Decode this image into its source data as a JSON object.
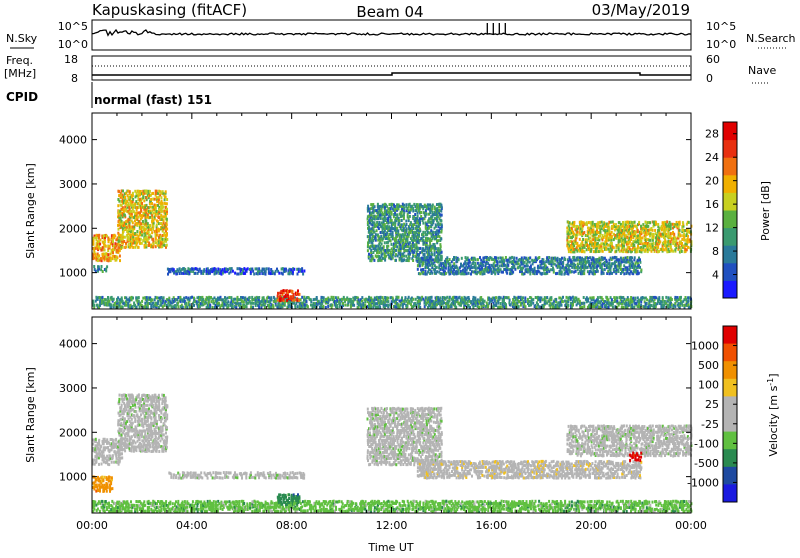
{
  "header": {
    "station": "Kapuskasing (fitACF)",
    "beam": "Beam 04",
    "date": "03/May/2019"
  },
  "panels": {
    "nsky": {
      "label": "N.Sky",
      "left_ticks": [
        "10^5",
        "10^0"
      ],
      "right_ticks": [
        "10^5",
        "10^0"
      ],
      "right_label": "N.Search"
    },
    "freq": {
      "label_line1": "Freq.",
      "label_line2": "[MHz]",
      "left_ticks": [
        "18",
        "8"
      ],
      "right_ticks": [
        "60",
        "0"
      ],
      "right_label": "Nave"
    },
    "cpid": {
      "label": "CPID",
      "value": "normal (fast) 151"
    }
  },
  "colors": {
    "power_scale": [
      "#1a1aff",
      "#2050c0",
      "#2a7a9a",
      "#3a9a70",
      "#5ab040",
      "#c8d020",
      "#f0b000",
      "#f07010",
      "#e83010",
      "#e00000"
    ],
    "velocity_scale": [
      "#1a1ae0",
      "#1e4aa0",
      "#2a8a50",
      "#60c040",
      "#b4b4b4",
      "#b4b4b4",
      "#f0c020",
      "#f09000",
      "#f05000",
      "#e00000"
    ]
  },
  "chart_data": [
    {
      "type": "heatmap",
      "name": "power",
      "ylabel": "Slant Range [km]",
      "yticks": [
        1000,
        2000,
        3000,
        4000
      ],
      "ylim": [
        180,
        4600
      ],
      "xlim": [
        0,
        24
      ],
      "colorbar": {
        "label": "Power [dB]",
        "ticks": [
          "4",
          "8",
          "12",
          "16",
          "20",
          "24",
          "28"
        ],
        "range": [
          0,
          30
        ]
      },
      "echo_bands": [
        {
          "t0": 0.0,
          "t1": 1.2,
          "r0": 1300,
          "r1": 1900,
          "level": 20
        },
        {
          "t0": 0.0,
          "t1": 0.6,
          "r0": 1050,
          "r1": 1200,
          "level": 8
        },
        {
          "t0": 1.0,
          "t1": 3.0,
          "r0": 1600,
          "r1": 2900,
          "level": 18
        },
        {
          "t0": 3.0,
          "t1": 8.5,
          "r0": 1000,
          "r1": 1150,
          "level": 6
        },
        {
          "t0": 0.0,
          "t1": 24.0,
          "r0": 250,
          "r1": 500,
          "level": 10
        },
        {
          "t0": 7.4,
          "t1": 8.3,
          "r0": 400,
          "r1": 650,
          "level": 26
        },
        {
          "t0": 11.0,
          "t1": 14.0,
          "r0": 1300,
          "r1": 2600,
          "level": 10
        },
        {
          "t0": 13.0,
          "t1": 22.0,
          "r0": 1000,
          "r1": 1400,
          "level": 8
        },
        {
          "t0": 19.0,
          "t1": 24.0,
          "r0": 1500,
          "r1": 2200,
          "level": 17
        }
      ]
    },
    {
      "type": "heatmap",
      "name": "velocity",
      "ylabel": "Slant Range [km]",
      "xlabel": "Time UT",
      "yticks": [
        1000,
        2000,
        3000,
        4000
      ],
      "ylim": [
        180,
        4600
      ],
      "xlim": [
        0,
        24
      ],
      "xticks": [
        "00:00",
        "04:00",
        "08:00",
        "12:00",
        "16:00",
        "20:00",
        "00:00"
      ],
      "colorbar": {
        "label": "Velocity [m s^-1]",
        "ticks": [
          "1000",
          "500",
          "100",
          "25",
          "-25",
          "-100",
          "-500",
          "-1000"
        ]
      },
      "echo_bands": [
        {
          "t0": 0.0,
          "t1": 1.2,
          "r0": 1300,
          "r1": 1900,
          "level": 4
        },
        {
          "t0": 0.0,
          "t1": 0.8,
          "r0": 700,
          "r1": 1050,
          "level": 7
        },
        {
          "t0": 1.0,
          "t1": 3.0,
          "r0": 1600,
          "r1": 2900,
          "level": 4
        },
        {
          "t0": 3.0,
          "t1": 8.5,
          "r0": 1000,
          "r1": 1150,
          "level": 4
        },
        {
          "t0": 0.0,
          "t1": 24.0,
          "r0": 250,
          "r1": 500,
          "level": 3
        },
        {
          "t0": 7.4,
          "t1": 8.3,
          "r0": 400,
          "r1": 650,
          "level": 2
        },
        {
          "t0": 11.0,
          "t1": 14.0,
          "r0": 1300,
          "r1": 2600,
          "level": 4
        },
        {
          "t0": 13.0,
          "t1": 22.0,
          "r0": 1000,
          "r1": 1400,
          "level": 5
        },
        {
          "t0": 19.0,
          "t1": 24.0,
          "r0": 1500,
          "r1": 2200,
          "level": 4
        },
        {
          "t0": 21.5,
          "t1": 22.0,
          "r0": 1400,
          "r1": 1600,
          "level": 9
        }
      ]
    }
  ]
}
